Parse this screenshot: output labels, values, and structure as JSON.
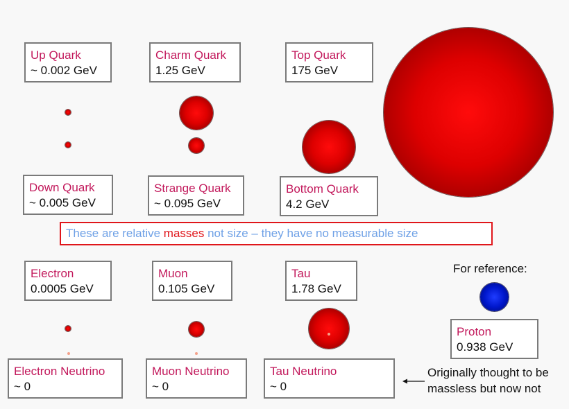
{
  "particles": {
    "up": {
      "name": "Up Quark",
      "mass": "~ 0.002 GeV"
    },
    "charm": {
      "name": "Charm Quark",
      "mass": "1.25 GeV"
    },
    "top": {
      "name": "Top Quark",
      "mass": "175 GeV"
    },
    "down": {
      "name": "Down Quark",
      "mass": "~ 0.005 GeV"
    },
    "strange": {
      "name": "Strange Quark",
      "mass": "~ 0.095 GeV"
    },
    "bottom": {
      "name": "Bottom Quark",
      "mass": "4.2 GeV"
    },
    "electron": {
      "name": "Electron",
      "mass": "0.0005 GeV"
    },
    "muon": {
      "name": "Muon",
      "mass": "0.105 GeV"
    },
    "tau": {
      "name": "Tau",
      "mass": "1.78 GeV"
    },
    "electron_neutrino": {
      "name": "Electron Neutrino",
      "mass": "~ 0"
    },
    "muon_neutrino": {
      "name": "Muon Neutrino",
      "mass": "~ 0"
    },
    "tau_neutrino": {
      "name": "Tau Neutrino",
      "mass": "~ 0"
    },
    "proton": {
      "name": "Proton",
      "mass": "0.938 GeV"
    }
  },
  "note": {
    "before": "These are relative ",
    "highlight": "masses",
    "after": " not size – they have no measurable size"
  },
  "reference_label": "For reference:",
  "neutrino_note": {
    "line1": "Originally thought to be",
    "line2": "massless but now not"
  },
  "colors": {
    "particle_name": "#c2185b",
    "note_text": "#6fa1e6",
    "note_highlight": "#e0161b",
    "fermion_ball": "#dd0000",
    "proton_ball": "#0017cc"
  }
}
